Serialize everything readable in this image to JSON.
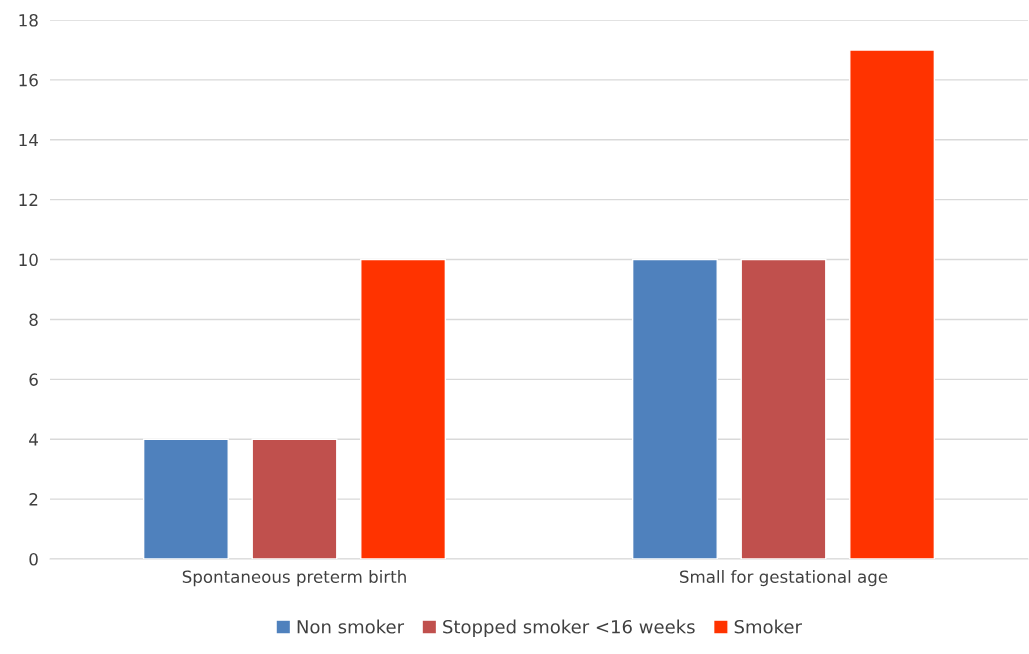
{
  "chart_data": {
    "type": "bar",
    "categories": [
      "Spontaneous preterm birth",
      "Small for gestational age"
    ],
    "series": [
      {
        "name": "Non smoker",
        "color": "#4f81bd",
        "values": [
          4,
          10
        ]
      },
      {
        "name": "Stopped smoker <16 weeks",
        "color": "#c0504d",
        "values": [
          4,
          10
        ]
      },
      {
        "name": "Smoker",
        "color": "#ff3300",
        "values": [
          10,
          17
        ]
      }
    ],
    "ylim": [
      0,
      18
    ],
    "yticks": [
      0,
      2,
      4,
      6,
      8,
      10,
      12,
      14,
      16,
      18
    ],
    "grid": "y",
    "legend": "bottom"
  }
}
